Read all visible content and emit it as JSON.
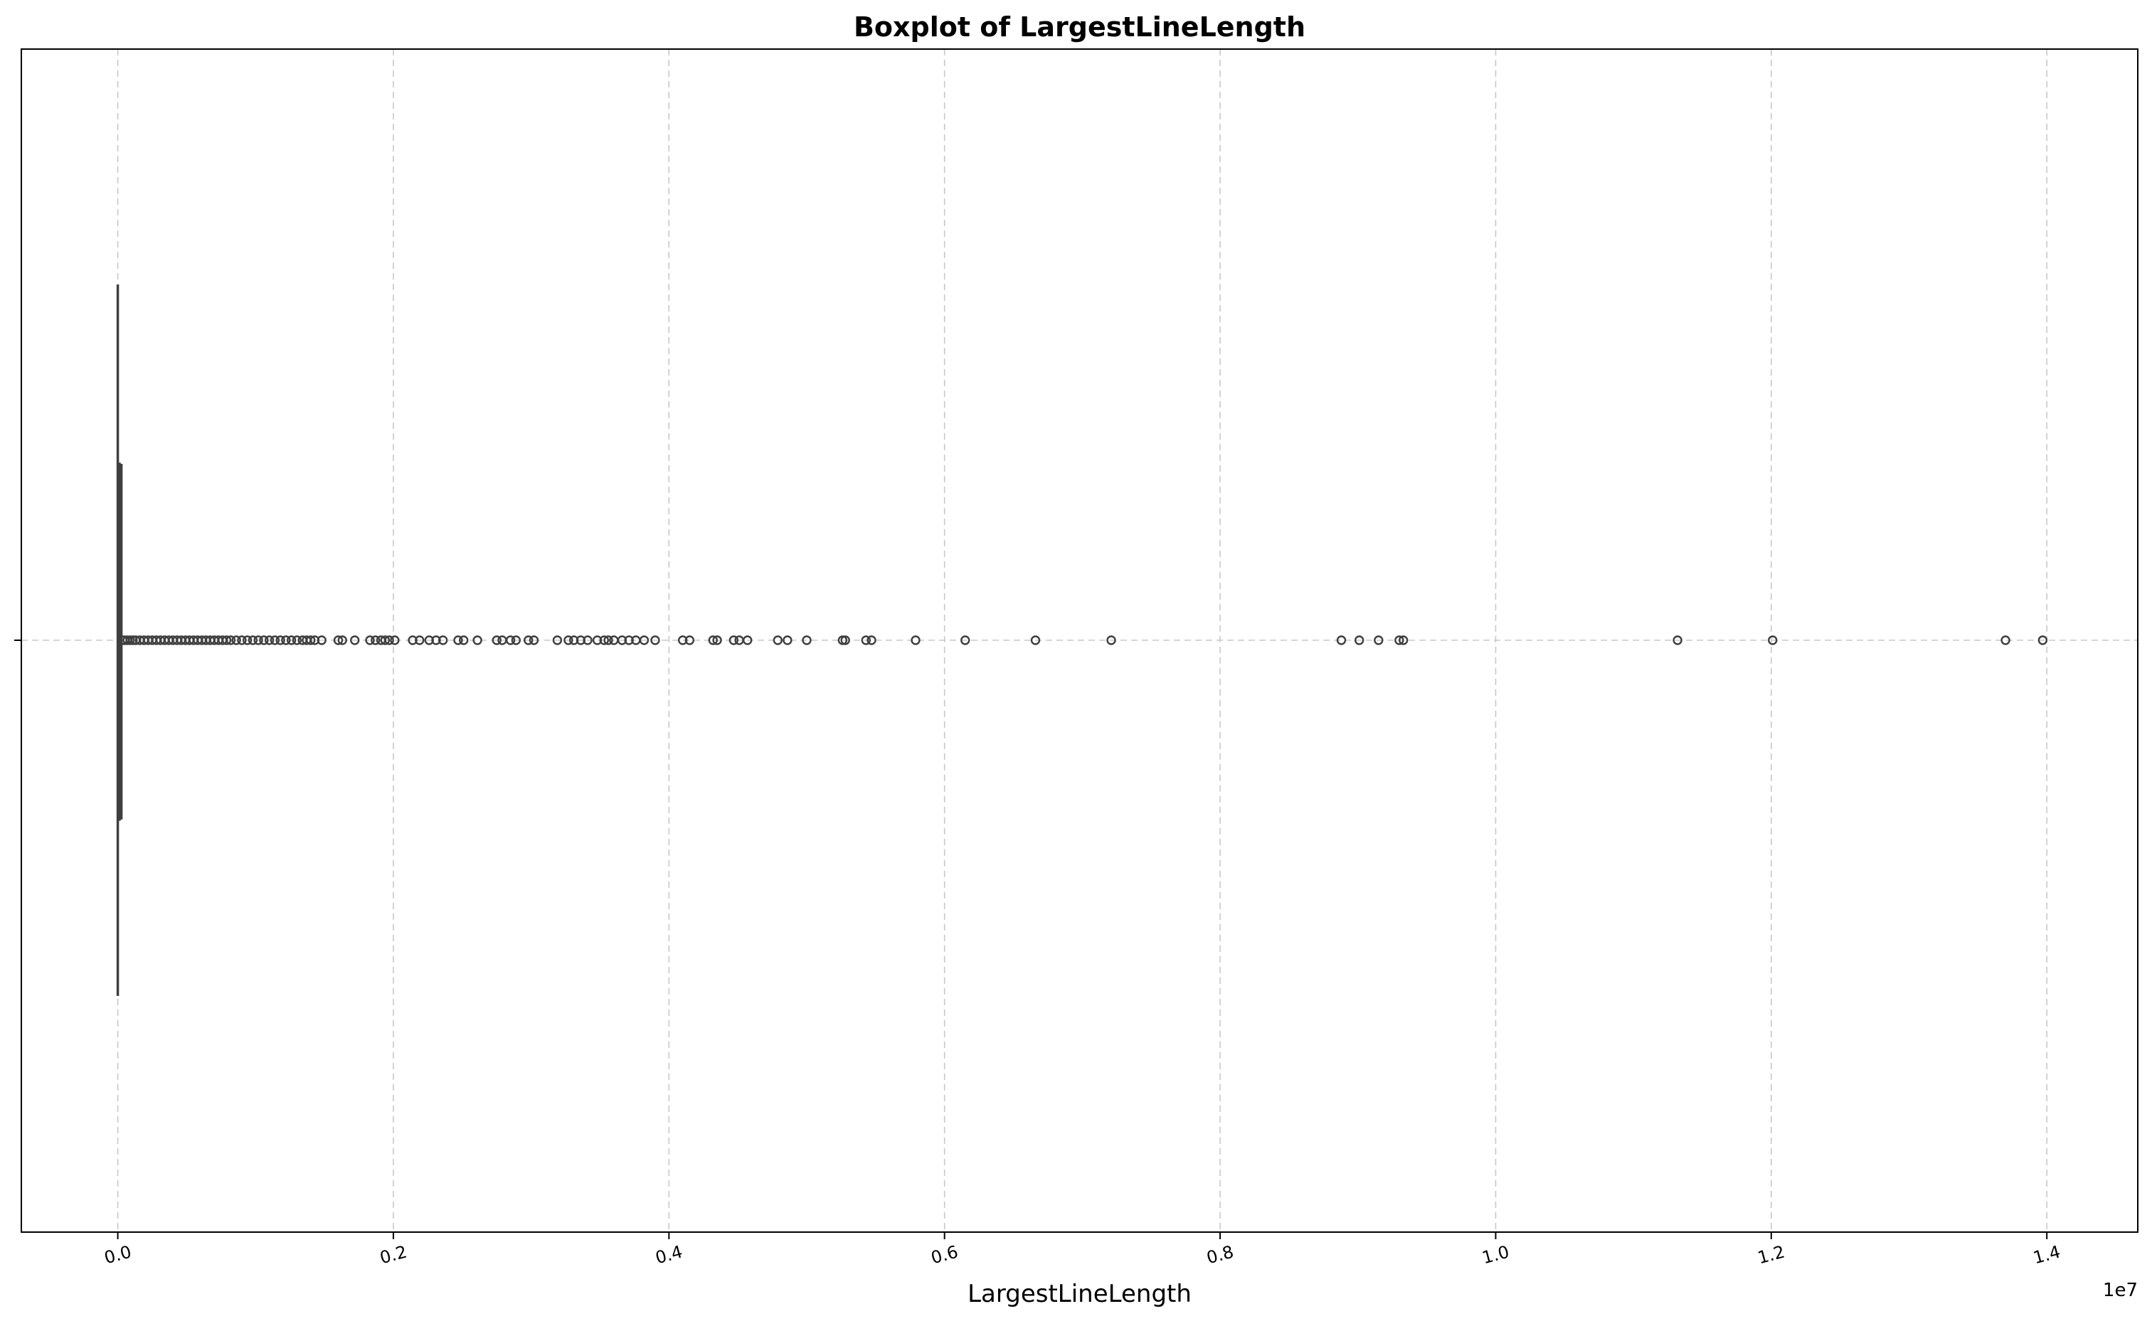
{
  "chart_data": {
    "type": "boxplot",
    "orientation": "horizontal",
    "title": "Boxplot of LargestLineLength",
    "xlabel": "LargestLineLength",
    "ylabel": "",
    "x_scale_label": "1e7",
    "xlim": [
      -0.07,
      1.466
    ],
    "x_unit_multiplier": 10000000,
    "x_ticks": [
      0.0,
      0.2,
      0.4,
      0.6,
      0.8,
      1.0,
      1.2,
      1.4
    ],
    "x_tick_labels": [
      "0.0",
      "0.2",
      "0.4",
      "0.6",
      "0.8",
      "1.0",
      "1.2",
      "1.4"
    ],
    "grid": true,
    "legend": "none",
    "box": {
      "whisker_low": 0.0,
      "q1": 0.0002,
      "median": 0.0005,
      "q3": 0.0012,
      "whisker_high": 0.0026
    },
    "outliers": [
      0.0035,
      0.005,
      0.007,
      0.009,
      0.011,
      0.013,
      0.016,
      0.019,
      0.022,
      0.025,
      0.028,
      0.031,
      0.034,
      0.037,
      0.04,
      0.043,
      0.046,
      0.049,
      0.052,
      0.055,
      0.058,
      0.061,
      0.064,
      0.067,
      0.07,
      0.073,
      0.076,
      0.079,
      0.082,
      0.086,
      0.09,
      0.094,
      0.098,
      0.102,
      0.106,
      0.11,
      0.114,
      0.118,
      0.122,
      0.126,
      0.13,
      0.134,
      0.137,
      0.14,
      0.143,
      0.148,
      0.16,
      0.163,
      0.172,
      0.183,
      0.187,
      0.191,
      0.194,
      0.197,
      0.201,
      0.214,
      0.219,
      0.226,
      0.231,
      0.236,
      0.247,
      0.251,
      0.261,
      0.275,
      0.279,
      0.285,
      0.289,
      0.298,
      0.302,
      0.319,
      0.327,
      0.331,
      0.336,
      0.341,
      0.348,
      0.353,
      0.356,
      0.36,
      0.366,
      0.371,
      0.376,
      0.382,
      0.39,
      0.41,
      0.415,
      0.432,
      0.435,
      0.447,
      0.451,
      0.457,
      0.479,
      0.486,
      0.5,
      0.526,
      0.528,
      0.543,
      0.547,
      0.579,
      0.615,
      0.666,
      0.721,
      0.888,
      0.901,
      0.915,
      0.93,
      0.933,
      1.132,
      1.201,
      1.37,
      1.397
    ]
  }
}
